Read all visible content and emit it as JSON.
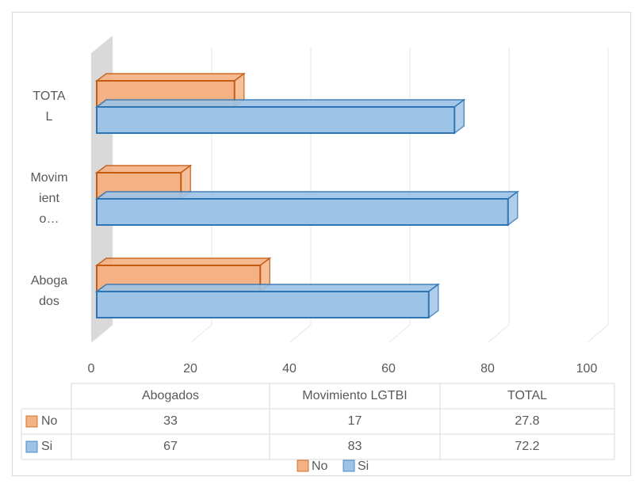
{
  "chart_data": {
    "type": "bar3d_horizontal",
    "categories": [
      "Abogados",
      "Movimiento LGTBI",
      "TOTAL"
    ],
    "axis_labels": [
      "Abogados",
      "Movimiento…",
      "TOTAL"
    ],
    "series": [
      {
        "name": "No",
        "color": "#f4b183",
        "edge": "#c55a11",
        "values": [
          33,
          17,
          27.8
        ]
      },
      {
        "name": "Si",
        "color": "#9dc3e6",
        "edge": "#2e75b6",
        "values": [
          67,
          83,
          72.2
        ]
      }
    ],
    "xlim": [
      0,
      100
    ],
    "xticks": [
      0,
      20,
      40,
      60,
      80,
      100
    ],
    "grid": true,
    "legend": "bottom",
    "data_table": true
  }
}
